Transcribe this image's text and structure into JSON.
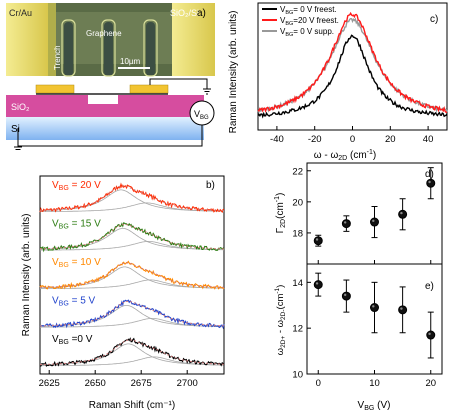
{
  "panel_a": {
    "label": "a)",
    "text": {
      "crau": "Cr/Au",
      "graphene": "Graphene",
      "sio2si": "SiO₂/Si",
      "trench": "Trench",
      "scale": "10µm"
    },
    "schematic": {
      "sio2": "SiO₂",
      "si": "Si",
      "vbg": "V",
      "vbg_sub": "BG"
    },
    "colors": {
      "gold": "#e7d86a",
      "sio2": "#d64d9f",
      "si_top": "#e2f1ff",
      "si_bottom": "#7fb2f0",
      "electrode": "#f2c431",
      "micrograph_bg": "#5a6b46",
      "trench": "#3c4e43"
    }
  },
  "chart_data": [
    {
      "type": "line",
      "panel": "b)",
      "xlabel": "Raman Shift (cm⁻¹)",
      "ylabel": "Raman Intensity (arb. units)",
      "xlim": [
        2620,
        2720
      ],
      "xticks": [
        2625,
        2650,
        2675,
        2700
      ],
      "series": [
        {
          "name": "V_BG = 20 V",
          "label_prefix": "V",
          "label_sub": "BG",
          "label_suffix": "= 20 V",
          "color": "#ff2a00",
          "peak": 2666,
          "offset": 4
        },
        {
          "name": "V_BG = 15 V",
          "label_prefix": "V",
          "label_sub": "BG",
          "label_suffix": "= 15 V",
          "color": "#2e7d14",
          "peak": 2667,
          "offset": 3
        },
        {
          "name": "V_BG = 10 V",
          "label_prefix": "V",
          "label_sub": "BG",
          "label_suffix": "= 10 V",
          "color": "#ff8800",
          "peak": 2668,
          "offset": 2
        },
        {
          "name": "V_BG = 5 V",
          "label_prefix": "V",
          "label_sub": "BG",
          "label_suffix": "= 5 V",
          "color": "#2244cc",
          "peak": 2669,
          "offset": 1
        },
        {
          "name": "V_BG = 0 V",
          "label_prefix": "V",
          "label_sub": "BG",
          "label_suffix": "=0 V",
          "color": "#000000",
          "peak": 2670,
          "offset": 0
        }
      ],
      "fit_color": "#d07a7a",
      "component_color": "#a8a8a8"
    },
    {
      "type": "line",
      "panel": "c)",
      "xlabel": "ω - ω2D (cm⁻¹)",
      "ylabel": "Raman Intensity (arb. units)",
      "xlim": [
        -50,
        50
      ],
      "xticks": [
        -40,
        -20,
        0,
        20,
        40
      ],
      "series": [
        {
          "name": "VBG= 0 V freest.",
          "label_prefix": "V",
          "label_sub": "BG",
          "label_suffix": "= 0 V freest.",
          "color": "#000000",
          "amp": 0.74,
          "width": 10.5
        },
        {
          "name": "VBG=20 V freest.",
          "label_prefix": "V",
          "label_sub": "BG",
          "label_suffix": "=20 V freest.",
          "color": "#ff1a1a",
          "amp": 0.93,
          "width": 14.5
        },
        {
          "name": "VBG= 0 V supp.",
          "label_prefix": "V",
          "label_sub": "BG",
          "label_suffix": "= 0 V supp.",
          "color": "#999999",
          "amp": 0.88,
          "width": 15.0
        }
      ]
    },
    {
      "type": "scatter",
      "panel": "d)",
      "ylabel": "Γ2D (cm⁻¹)",
      "xlim": [
        -2,
        22
      ],
      "ylim": [
        16,
        22.5
      ],
      "yticks": [
        18,
        20,
        22
      ],
      "x": [
        0,
        5,
        10,
        15,
        20
      ],
      "y": [
        17.5,
        18.6,
        18.7,
        19.2,
        21.2
      ],
      "yerr": [
        0.35,
        0.5,
        1.0,
        1.0,
        1.0
      ]
    },
    {
      "type": "scatter",
      "panel": "e)",
      "xlabel": "V_BG (V)",
      "xlabel_prefix": "V",
      "xlabel_sub": "BG",
      "xlabel_suffix": " (V)",
      "ylabel": "ω2D+ - ω2D- (cm⁻¹)",
      "xlim": [
        -2,
        22
      ],
      "ylim": [
        10,
        14.8
      ],
      "yticks": [
        10,
        12,
        14
      ],
      "xticks": [
        0,
        10,
        20
      ],
      "x": [
        0,
        5,
        10,
        15,
        20
      ],
      "y": [
        13.9,
        13.4,
        12.9,
        12.8,
        11.7
      ],
      "yerr": [
        0.5,
        0.7,
        1.1,
        1.0,
        1.0
      ]
    }
  ]
}
